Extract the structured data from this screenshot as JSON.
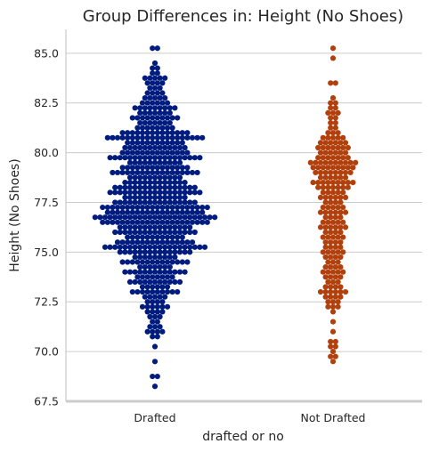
{
  "chart_data": {
    "type": "swarm",
    "title": "Group Differences in: Height (No Shoes)",
    "xlabel": "drafted or no",
    "ylabel": "Height (No Shoes)",
    "categories": [
      "Drafted",
      "Not Drafted"
    ],
    "ylim": [
      67.5,
      86.2
    ],
    "yticks": [
      "67.5",
      "70.0",
      "72.5",
      "75.0",
      "77.5",
      "80.0",
      "82.5",
      "85.0"
    ],
    "grid": "horizontal",
    "colors": {
      "Drafted": "#001c7f",
      "Not Drafted": "#b1400d"
    },
    "series": [
      {
        "category": "Drafted",
        "values": [
          {
            "v": 68.25,
            "n": 1
          },
          {
            "v": 68.75,
            "n": 2
          },
          {
            "v": 69.5,
            "n": 1
          },
          {
            "v": 70.25,
            "n": 1
          },
          {
            "v": 70.75,
            "n": 2
          },
          {
            "v": 71.0,
            "n": 4
          },
          {
            "v": 71.25,
            "n": 3
          },
          {
            "v": 71.5,
            "n": 2
          },
          {
            "v": 71.75,
            "n": 3
          },
          {
            "v": 72.0,
            "n": 4
          },
          {
            "v": 72.25,
            "n": 6
          },
          {
            "v": 72.5,
            "n": 4
          },
          {
            "v": 72.75,
            "n": 5
          },
          {
            "v": 73.0,
            "n": 10
          },
          {
            "v": 73.25,
            "n": 6
          },
          {
            "v": 73.5,
            "n": 11
          },
          {
            "v": 73.75,
            "n": 8
          },
          {
            "v": 74.0,
            "n": 13
          },
          {
            "v": 74.25,
            "n": 7
          },
          {
            "v": 74.5,
            "n": 14
          },
          {
            "v": 74.75,
            "n": 9
          },
          {
            "v": 75.0,
            "n": 15
          },
          {
            "v": 75.25,
            "n": 21
          },
          {
            "v": 75.5,
            "n": 16
          },
          {
            "v": 75.75,
            "n": 12
          },
          {
            "v": 76.0,
            "n": 17
          },
          {
            "v": 76.25,
            "n": 15
          },
          {
            "v": 76.5,
            "n": 22
          },
          {
            "v": 76.75,
            "n": 25
          },
          {
            "v": 77.0,
            "n": 20
          },
          {
            "v": 77.25,
            "n": 22
          },
          {
            "v": 77.5,
            "n": 17
          },
          {
            "v": 77.75,
            "n": 13
          },
          {
            "v": 78.0,
            "n": 19
          },
          {
            "v": 78.25,
            "n": 17
          },
          {
            "v": 78.5,
            "n": 13
          },
          {
            "v": 78.75,
            "n": 11
          },
          {
            "v": 79.0,
            "n": 18
          },
          {
            "v": 79.25,
            "n": 14
          },
          {
            "v": 79.5,
            "n": 11
          },
          {
            "v": 79.75,
            "n": 19
          },
          {
            "v": 80.0,
            "n": 14
          },
          {
            "v": 80.25,
            "n": 13
          },
          {
            "v": 80.5,
            "n": 12
          },
          {
            "v": 80.75,
            "n": 20
          },
          {
            "v": 81.0,
            "n": 14
          },
          {
            "v": 81.25,
            "n": 8
          },
          {
            "v": 81.5,
            "n": 7
          },
          {
            "v": 81.75,
            "n": 10
          },
          {
            "v": 82.0,
            "n": 7
          },
          {
            "v": 82.25,
            "n": 9
          },
          {
            "v": 82.5,
            "n": 6
          },
          {
            "v": 82.75,
            "n": 5
          },
          {
            "v": 83.0,
            "n": 4
          },
          {
            "v": 83.25,
            "n": 3
          },
          {
            "v": 83.5,
            "n": 4
          },
          {
            "v": 83.75,
            "n": 5
          },
          {
            "v": 84.0,
            "n": 2
          },
          {
            "v": 84.25,
            "n": 2
          },
          {
            "v": 84.5,
            "n": 1
          },
          {
            "v": 85.25,
            "n": 2
          }
        ]
      },
      {
        "category": "Not Drafted",
        "values": [
          {
            "v": 69.5,
            "n": 1
          },
          {
            "v": 69.75,
            "n": 2
          },
          {
            "v": 70.0,
            "n": 1
          },
          {
            "v": 70.25,
            "n": 2
          },
          {
            "v": 70.5,
            "n": 2
          },
          {
            "v": 71.0,
            "n": 1
          },
          {
            "v": 71.5,
            "n": 1
          },
          {
            "v": 72.0,
            "n": 1
          },
          {
            "v": 72.25,
            "n": 3
          },
          {
            "v": 72.5,
            "n": 3
          },
          {
            "v": 72.75,
            "n": 4
          },
          {
            "v": 73.0,
            "n": 6
          },
          {
            "v": 73.25,
            "n": 4
          },
          {
            "v": 73.5,
            "n": 3
          },
          {
            "v": 73.75,
            "n": 4
          },
          {
            "v": 74.0,
            "n": 5
          },
          {
            "v": 74.25,
            "n": 4
          },
          {
            "v": 74.5,
            "n": 3
          },
          {
            "v": 74.75,
            "n": 4
          },
          {
            "v": 75.0,
            "n": 5
          },
          {
            "v": 75.25,
            "n": 4
          },
          {
            "v": 75.5,
            "n": 4
          },
          {
            "v": 75.75,
            "n": 5
          },
          {
            "v": 76.0,
            "n": 4
          },
          {
            "v": 76.25,
            "n": 6
          },
          {
            "v": 76.5,
            "n": 5
          },
          {
            "v": 76.75,
            "n": 4
          },
          {
            "v": 77.0,
            "n": 6
          },
          {
            "v": 77.25,
            "n": 5
          },
          {
            "v": 77.5,
            "n": 4
          },
          {
            "v": 77.75,
            "n": 6
          },
          {
            "v": 78.0,
            "n": 5
          },
          {
            "v": 78.25,
            "n": 7
          },
          {
            "v": 78.5,
            "n": 9
          },
          {
            "v": 78.75,
            "n": 6
          },
          {
            "v": 79.0,
            "n": 8
          },
          {
            "v": 79.25,
            "n": 9
          },
          {
            "v": 79.5,
            "n": 10
          },
          {
            "v": 79.75,
            "n": 7
          },
          {
            "v": 80.0,
            "n": 6
          },
          {
            "v": 80.25,
            "n": 7
          },
          {
            "v": 80.5,
            "n": 6
          },
          {
            "v": 80.75,
            "n": 5
          },
          {
            "v": 81.0,
            "n": 3
          },
          {
            "v": 81.25,
            "n": 2
          },
          {
            "v": 81.5,
            "n": 2
          },
          {
            "v": 81.75,
            "n": 2
          },
          {
            "v": 82.0,
            "n": 3
          },
          {
            "v": 82.25,
            "n": 2
          },
          {
            "v": 82.5,
            "n": 2
          },
          {
            "v": 82.75,
            "n": 1
          },
          {
            "v": 83.5,
            "n": 2
          },
          {
            "v": 84.75,
            "n": 1
          },
          {
            "v": 85.25,
            "n": 1
          }
        ]
      }
    ]
  }
}
